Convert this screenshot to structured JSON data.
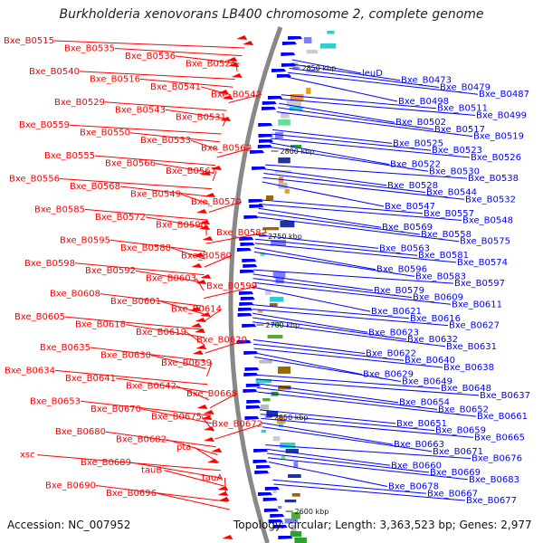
{
  "title": "Burkholderia xenovorans LB400 chromosome 2, complete genome",
  "footer": {
    "accession": "Accession: NC_007952",
    "summary": "Topology: circular; Length: 3,363,523 bp; Genes: 2,977"
  },
  "colors": {
    "left_strand": "#ff0000",
    "right_strand": "#0000ff",
    "backbone": "#888888"
  },
  "kbp_labels": [
    "2850 kbp",
    "2800 kbp",
    "2750 kbp",
    "2700 kbp",
    "2650 kbp",
    "2600 kbp"
  ],
  "left_labels": [
    "Bxe_B0515",
    "Bxe_B0535",
    "Bxe_B0536",
    "Bxe_B0524",
    "Bxe_B0540",
    "Bxe_B0516",
    "Bxe_B0541",
    "Bxe_B0542",
    "Bxe_B0529",
    "Bxe_B0543",
    "Bxe_B0531",
    "Bxe_B0559",
    "Bxe_B0550",
    "Bxe_B0533",
    "Bxe_B0562",
    "Bxe_B0555",
    "Bxe_B0566",
    "Bxe_B0567",
    "Bxe_B0556",
    "Bxe_B0568",
    "Bxe_B0549",
    "Bxe_B0570",
    "Bxe_B0585",
    "Bxe_B0572",
    "Bxe_B0590",
    "Bxe_B0582",
    "Bxe_B0595",
    "Bxe_B0588",
    "Bxe_B0580",
    "Bxe_B0598",
    "Bxe_B0592",
    "Bxe_B0603",
    "Bxe_B0599",
    "Bxe_B0608",
    "Bxe_B0601",
    "Bxe_B0614",
    "Bxe_B0605",
    "Bxe_B0618",
    "Bxe_B0619",
    "Bxe_B0620",
    "Bxe_B0635",
    "Bxe_B0630",
    "Bxe_B0639",
    "Bxe_B0634",
    "Bxe_B0641",
    "Bxe_B0642",
    "Bxe_B0668",
    "Bxe_B0653",
    "Bxe_B0670",
    "Bxe_B0675",
    "Bxe_B0672",
    "Bxe_B0680",
    "Bxe_B0682",
    "pta",
    "xsc",
    "Bxe_B0689",
    "tauB",
    "tauA",
    "Bxe_B0690",
    "Bxe_B0696"
  ],
  "right_labels": [
    "leuD",
    "Bxe_B0473",
    "Bxe_B0479",
    "Bxe_B0487",
    "Bxe_B0498",
    "Bxe_B0511",
    "Bxe_B0499",
    "Bxe_B0502",
    "Bxe_B0517",
    "Bxe_B0519",
    "Bxe_B0525",
    "Bxe_B0523",
    "Bxe_B0526",
    "Bxe_B0522",
    "Bxe_B0530",
    "Bxe_B0538",
    "Bxe_B0528",
    "Bxe_B0544",
    "Bxe_B0532",
    "Bxe_B0547",
    "Bxe_B0557",
    "Bxe_B0548",
    "Bxe_B0569",
    "Bxe_B0558",
    "Bxe_B0575",
    "Bxe_B0563",
    "Bxe_B0581",
    "Bxe_B0574",
    "Bxe_B0596",
    "Bxe_B0583",
    "Bxe_B0597",
    "Bxe_B0579",
    "Bxe_B0609",
    "Bxe_B0611",
    "Bxe_B0621",
    "Bxe_B0616",
    "Bxe_B0627",
    "Bxe_B0623",
    "Bxe_B0632",
    "Bxe_B0631",
    "Bxe_B0622",
    "Bxe_B0640",
    "Bxe_B0638",
    "Bxe_B0629",
    "Bxe_B0649",
    "Bxe_B0648",
    "Bxe_B0637",
    "Bxe_B0654",
    "Bxe_B0652",
    "Bxe_B0661",
    "Bxe_B0651",
    "Bxe_B0659",
    "Bxe_B0665",
    "Bxe_B0663",
    "Bxe_B0671",
    "Bxe_B0676",
    "Bxe_B0660",
    "Bxe_B0669",
    "Bxe_B0683",
    "Bxe_B0678",
    "Bxe_B0667",
    "Bxe_B0677"
  ]
}
